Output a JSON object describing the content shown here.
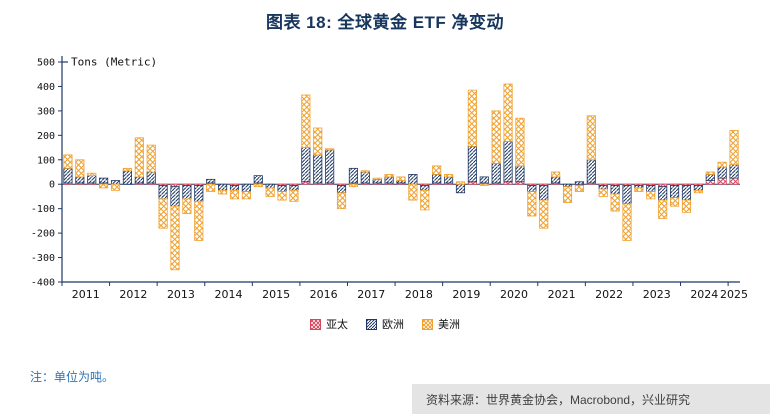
{
  "page": {
    "title": "图表 18: 全球黄金 ETF 净变动"
  },
  "chart_data": {
    "type": "bar",
    "stacked": true,
    "title": "图表 18: 全球黄金 ETF 净变动",
    "unit_label": "Tons (Metric)",
    "ylim": [
      -400,
      500
    ],
    "ytick_step": 100,
    "legend_position": "bottom",
    "axis_color": "#1f3864",
    "years": [
      "2011",
      "2012",
      "2013",
      "2014",
      "2015",
      "2016",
      "2017",
      "2018",
      "2019",
      "2020",
      "2021",
      "2022",
      "2023",
      "2024",
      "2025"
    ],
    "x": [
      "2011Q1",
      "2011Q2",
      "2011Q3",
      "2011Q4",
      "2012Q1",
      "2012Q2",
      "2012Q3",
      "2012Q4",
      "2013Q1",
      "2013Q2",
      "2013Q3",
      "2013Q4",
      "2014Q1",
      "2014Q2",
      "2014Q3",
      "2014Q4",
      "2015Q1",
      "2015Q2",
      "2015Q3",
      "2015Q4",
      "2016Q1",
      "2016Q2",
      "2016Q3",
      "2016Q4",
      "2017Q1",
      "2017Q2",
      "2017Q3",
      "2017Q4",
      "2018Q1",
      "2018Q2",
      "2018Q3",
      "2018Q4",
      "2019Q1",
      "2019Q2",
      "2019Q3",
      "2019Q4",
      "2020Q1",
      "2020Q2",
      "2020Q3",
      "2020Q4",
      "2021Q1",
      "2021Q2",
      "2021Q3",
      "2021Q4",
      "2022Q1",
      "2022Q2",
      "2022Q3",
      "2022Q4",
      "2023Q1",
      "2023Q2",
      "2023Q3",
      "2023Q4",
      "2024Q1",
      "2024Q2",
      "2024Q3",
      "2024Q4",
      "2025Q1"
    ],
    "series": [
      {
        "name": "亚太",
        "key": "asia-pacific",
        "color": "#d9475c",
        "hatch": "cross",
        "values": [
          5,
          5,
          5,
          5,
          0,
          0,
          5,
          5,
          -5,
          -10,
          -5,
          -5,
          5,
          0,
          -5,
          0,
          5,
          0,
          -5,
          -5,
          10,
          5,
          5,
          -5,
          5,
          5,
          5,
          5,
          5,
          0,
          -5,
          5,
          5,
          0,
          10,
          5,
          5,
          10,
          10,
          -5,
          -5,
          5,
          0,
          -5,
          5,
          -5,
          -5,
          -5,
          -5,
          -5,
          -10,
          -5,
          -5,
          -5,
          15,
          25,
          25
        ]
      },
      {
        "name": "欧洲",
        "key": "europe",
        "color": "#1f3864",
        "hatch": "diagonal",
        "values": [
          60,
          25,
          30,
          20,
          15,
          55,
          25,
          45,
          -55,
          -80,
          -55,
          -65,
          15,
          -25,
          -20,
          -30,
          30,
          -15,
          -25,
          -20,
          140,
          115,
          135,
          -30,
          60,
          45,
          15,
          25,
          10,
          40,
          -20,
          35,
          25,
          -35,
          145,
          25,
          80,
          165,
          65,
          -25,
          -60,
          25,
          -10,
          10,
          95,
          -15,
          -35,
          -75,
          -10,
          -25,
          -55,
          -50,
          -60,
          -20,
          25,
          45,
          55
        ]
      },
      {
        "name": "美洲",
        "key": "americas",
        "color": "#f0a12e",
        "hatch": "cross",
        "values": [
          55,
          70,
          10,
          -15,
          -25,
          10,
          160,
          110,
          -120,
          -260,
          -60,
          -160,
          -30,
          -15,
          -35,
          -30,
          -10,
          -35,
          -35,
          -45,
          215,
          110,
          5,
          -65,
          -10,
          5,
          5,
          10,
          15,
          -65,
          -80,
          35,
          10,
          10,
          230,
          -5,
          215,
          235,
          195,
          -100,
          -115,
          20,
          -65,
          -25,
          180,
          -30,
          -70,
          -150,
          -15,
          -30,
          -75,
          -35,
          -50,
          -10,
          10,
          20,
          140
        ]
      }
    ]
  },
  "notes": {
    "unit_note": "注：单位为吨。",
    "source": "资料来源：世界黄金协会，Macrobond，兴业研究"
  }
}
